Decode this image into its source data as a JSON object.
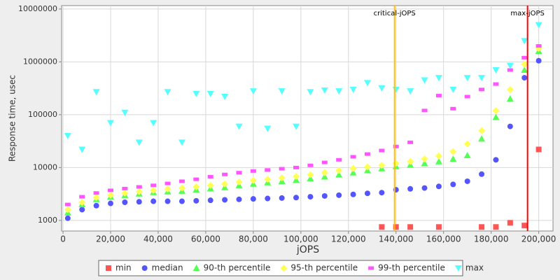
{
  "chart_data": {
    "type": "scatter",
    "x_label": "jOPS",
    "y_label": "Response time, usec",
    "log_y": true,
    "grid": true,
    "xlim": [
      -600,
      206000
    ],
    "ylim": [
      630,
      11600000
    ],
    "xticks": [
      0,
      {
        "value": 20000,
        "label": "20,000"
      },
      {
        "value": 40000,
        "label": "40,000"
      },
      {
        "value": 60000,
        "label": "60,000"
      },
      {
        "value": 80000,
        "label": "80,000"
      },
      {
        "value": 100000,
        "label": "100,000"
      },
      {
        "value": 120000,
        "label": "120,000"
      },
      {
        "value": 140000,
        "label": "140,000"
      },
      {
        "value": 160000,
        "label": "160,000"
      },
      {
        "value": 180000,
        "label": "180,000"
      },
      {
        "value": 200000,
        "label": "200,000"
      }
    ],
    "yticks": [
      1000,
      10000,
      100000,
      1000000,
      10000000
    ],
    "annotations": [
      {
        "label": "critical-jOPS",
        "x": 139400,
        "color": "#ffc000"
      },
      {
        "label": "max-jOPS",
        "x": 195300,
        "color": "#ff0000"
      }
    ],
    "x": [
      2000,
      8000,
      14000,
      20000,
      26000,
      32000,
      38000,
      44000,
      50000,
      56000,
      62000,
      68000,
      74000,
      80000,
      86000,
      92000,
      98000,
      104000,
      110000,
      116000,
      122000,
      128000,
      134000,
      140000,
      146000,
      152000,
      158000,
      164000,
      170000,
      176000,
      182000,
      188000,
      194000,
      200000
    ],
    "series": [
      {
        "name": "min",
        "color": "#ff5555",
        "marker": "square",
        "values": [
          null,
          null,
          null,
          null,
          null,
          null,
          null,
          null,
          null,
          null,
          null,
          null,
          null,
          null,
          null,
          null,
          null,
          null,
          null,
          null,
          null,
          null,
          750,
          750,
          750,
          null,
          750,
          null,
          null,
          750,
          750,
          900,
          800,
          22000
        ]
      },
      {
        "name": "median",
        "color": "#5555ff",
        "marker": "circle",
        "values": [
          1100,
          1600,
          1900,
          2100,
          2200,
          2250,
          2300,
          2300,
          2300,
          2350,
          2400,
          2450,
          2500,
          2550,
          2600,
          2650,
          2700,
          2800,
          2900,
          3000,
          3100,
          3250,
          3350,
          3800,
          3950,
          4100,
          4400,
          4800,
          5500,
          7500,
          14000,
          60000,
          500000,
          1050000
        ]
      },
      {
        "name": "90-th percentile",
        "color": "#55ff55",
        "marker": "triangle",
        "values": [
          1400,
          2000,
          2500,
          2800,
          3000,
          3200,
          3400,
          3500,
          3600,
          3800,
          4000,
          4200,
          4600,
          4900,
          5200,
          5500,
          5800,
          6200,
          6700,
          7300,
          8000,
          8800,
          9600,
          10500,
          11200,
          12000,
          13000,
          14500,
          17000,
          35000,
          90000,
          200000,
          700000,
          1600000
        ]
      },
      {
        "name": "95-th percentile",
        "color": "#ffff55",
        "marker": "diamond",
        "values": [
          1600,
          2200,
          2700,
          3000,
          3300,
          3500,
          3700,
          3900,
          4100,
          4300,
          4600,
          4900,
          5300,
          5700,
          6000,
          6400,
          6800,
          7300,
          8000,
          8800,
          9600,
          10300,
          11000,
          12000,
          13000,
          14500,
          16500,
          20000,
          28000,
          50000,
          120000,
          300000,
          900000,
          1800000
        ]
      },
      {
        "name": "99-th percentile",
        "color": "#ff55ff",
        "marker": "rect",
        "values": [
          2000,
          2800,
          3300,
          3700,
          4000,
          4300,
          4600,
          5000,
          5500,
          6000,
          6700,
          7400,
          8000,
          8600,
          9000,
          9500,
          10000,
          11000,
          12500,
          14000,
          16000,
          18000,
          21000,
          25000,
          30000,
          120000,
          230000,
          130000,
          220000,
          300000,
          380000,
          700000,
          1200000,
          2000000
        ]
      },
      {
        "name": "max",
        "color": "#55ffff",
        "marker": "triangle-down",
        "values": [
          40000,
          22000,
          270000,
          70000,
          110000,
          30000,
          70000,
          270000,
          30000,
          250000,
          250000,
          220000,
          60000,
          280000,
          55000,
          280000,
          60000,
          270000,
          290000,
          280000,
          300000,
          400000,
          320000,
          300000,
          280000,
          450000,
          500000,
          300000,
          500000,
          500000,
          700000,
          850000,
          2500000,
          5000000
        ]
      }
    ]
  }
}
